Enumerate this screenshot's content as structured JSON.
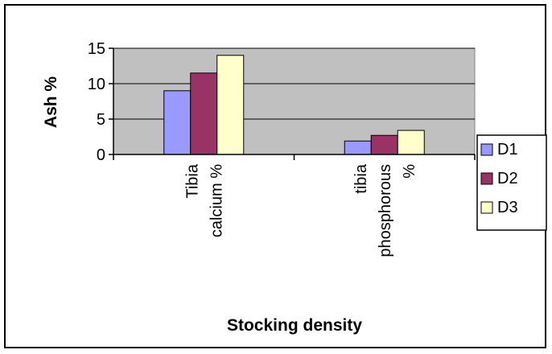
{
  "chart_data": {
    "type": "bar",
    "categories": [
      [
        "Tibia",
        "calcium %"
      ],
      [
        "tibia",
        "phosphorous",
        "%"
      ]
    ],
    "series": [
      {
        "name": "D1",
        "values": [
          9.0,
          1.9
        ],
        "color": "#9999ff"
      },
      {
        "name": "D2",
        "values": [
          11.5,
          2.7
        ],
        "color": "#993366"
      },
      {
        "name": "D3",
        "values": [
          14.0,
          3.4
        ],
        "color": "#ffffcc"
      }
    ],
    "title": "",
    "xlabel": "Stocking density",
    "ylabel": "Ash %",
    "ylim": [
      0,
      15
    ],
    "yticks": [
      0,
      5,
      10,
      15
    ],
    "grid": true,
    "legend": "right",
    "plot_background": "#c0c0c0"
  }
}
